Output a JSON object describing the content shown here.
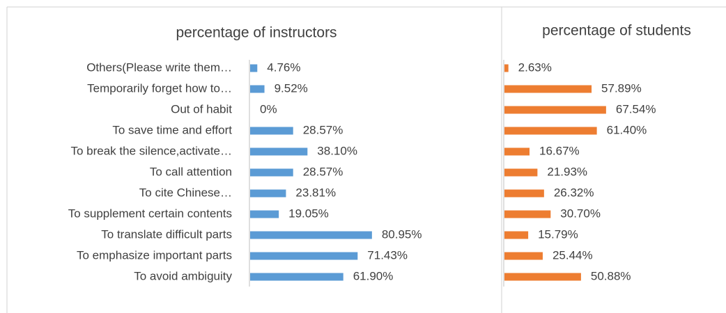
{
  "chart_data": [
    {
      "type": "bar",
      "orientation": "horizontal",
      "title": "percentage of instructors",
      "color": "#5b9bd5",
      "categories": [
        "Others(Please write them…",
        "Temporarily forget how to…",
        "Out of habit",
        "To save time and effort",
        "To break the silence,activate…",
        "To call attention",
        "To cite Chinese…",
        "To supplement certain contents",
        "To translate difficult parts",
        "To emphasize important parts",
        "To avoid ambiguity"
      ],
      "values": [
        4.76,
        9.52,
        0,
        28.57,
        38.1,
        28.57,
        23.81,
        19.05,
        80.95,
        71.43,
        61.9
      ],
      "value_labels": [
        "4.76%",
        "9.52%",
        "0%",
        "28.57%",
        "38.10%",
        "28.57%",
        "23.81%",
        "19.05%",
        "80.95%",
        "71.43%",
        "61.90%"
      ]
    },
    {
      "type": "bar",
      "orientation": "horizontal",
      "title": "percentage of students",
      "color": "#ed7d31",
      "values": [
        2.63,
        57.89,
        67.54,
        61.4,
        16.67,
        21.93,
        26.32,
        30.7,
        15.79,
        25.44,
        50.88
      ],
      "value_labels": [
        "2.63%",
        "57.89%",
        "67.54%",
        "61.40%",
        "16.67%",
        "21.93%",
        "26.32%",
        "30.70%",
        "15.79%",
        "25.44%",
        "50.88%"
      ]
    }
  ]
}
